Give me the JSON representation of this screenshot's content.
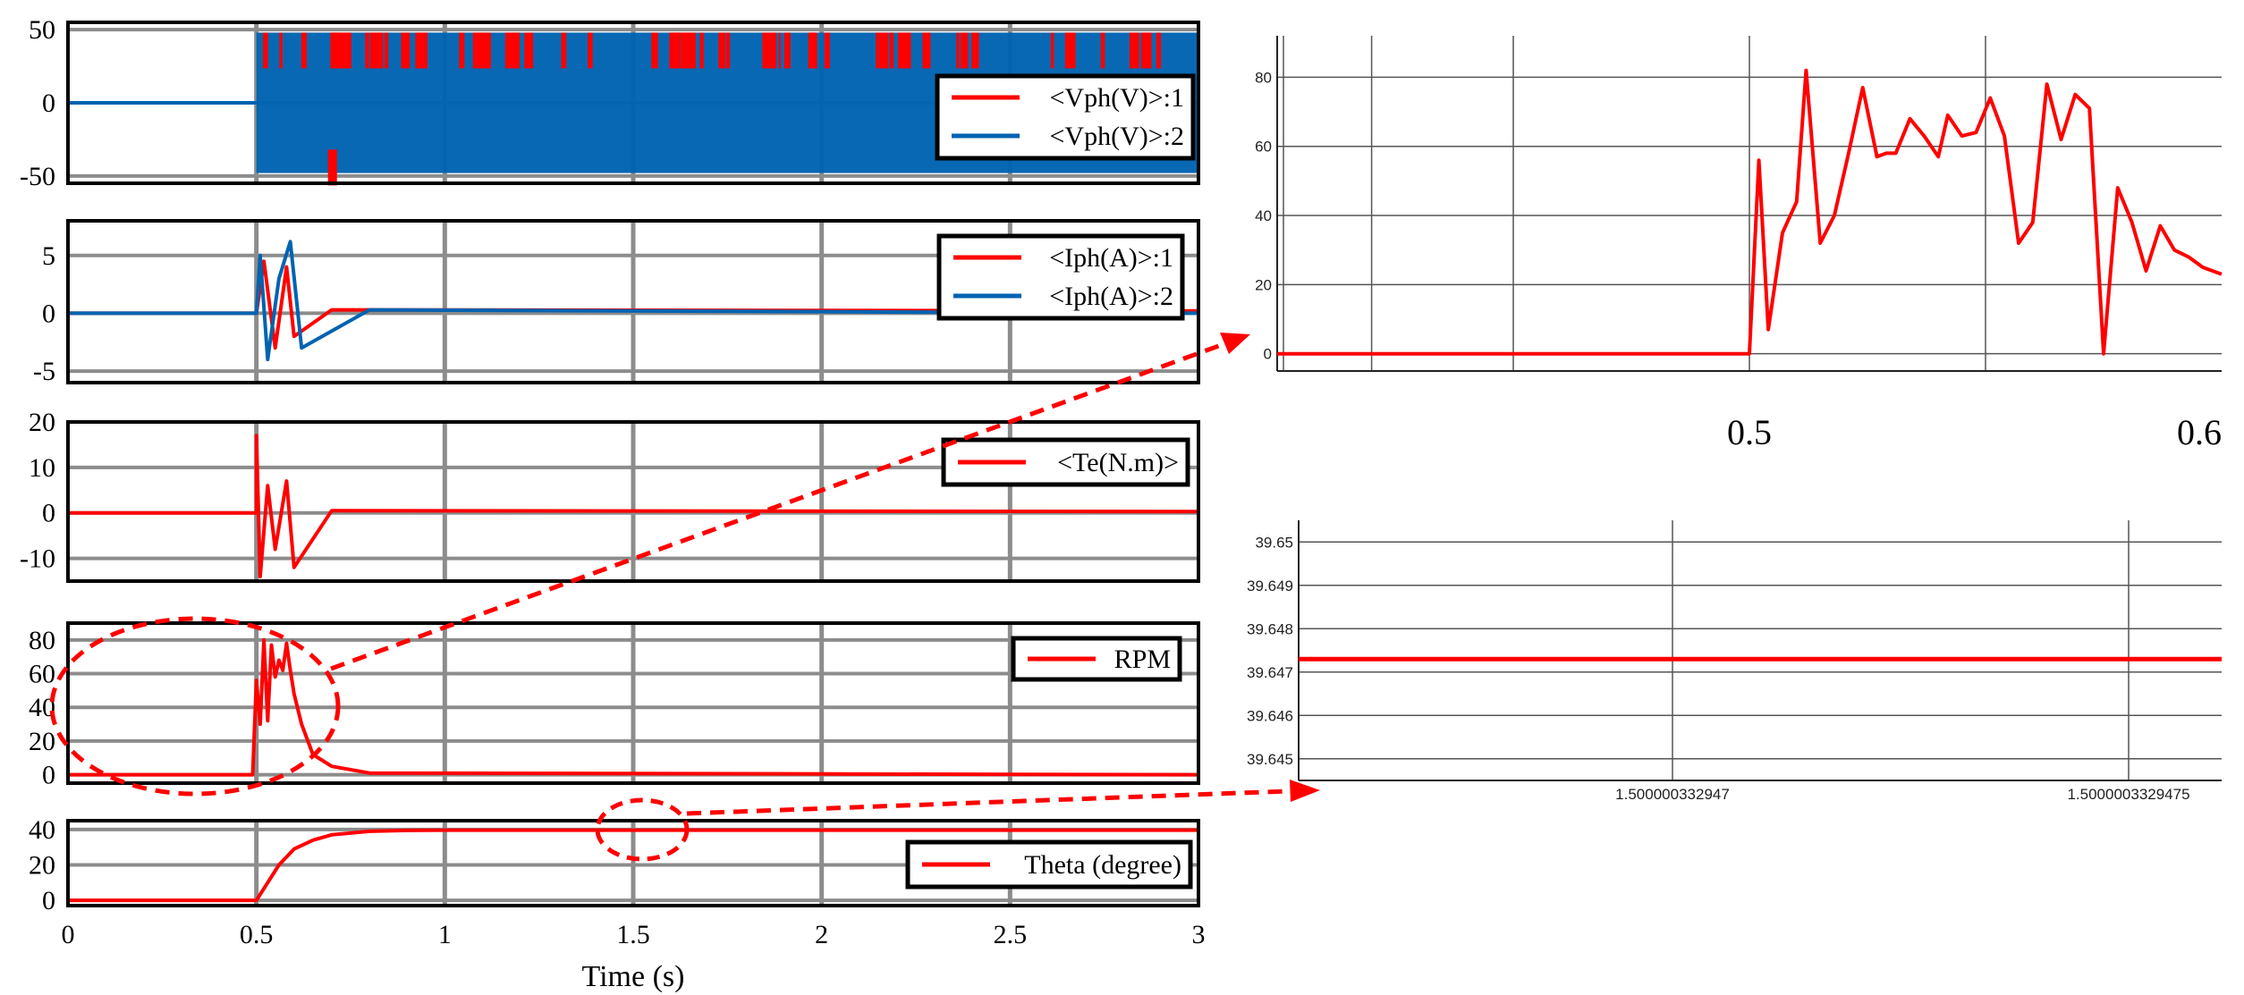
{
  "colors": {
    "red": "#ff0000",
    "blue": "#0063b1",
    "grid": "#8c8c8c",
    "frame": "#000000"
  },
  "chart_data": [
    {
      "type": "line",
      "panel": "voltage",
      "ylim": [
        -55,
        55
      ],
      "yticks": [
        -50,
        0,
        50
      ],
      "xlim": [
        0,
        3
      ],
      "legend": [
        "<Vph(V)>:1",
        "<Vph(V)>:2"
      ],
      "legend_placement": "right",
      "series": [
        {
          "name": "<Vph(V)>:1",
          "color": "red",
          "x": [
            0,
            0.5,
            0.5,
            3
          ],
          "y": [
            0,
            0,
            48,
            48
          ],
          "note_pwm": "switching between -48 and 48 after t=0.5"
        },
        {
          "name": "<Vph(V)>:2",
          "color": "blue",
          "x": [
            0,
            0.5,
            0.5,
            3
          ],
          "y": [
            0,
            0,
            48,
            48
          ]
        }
      ]
    },
    {
      "type": "line",
      "panel": "current",
      "ylim": [
        -6,
        8
      ],
      "yticks": [
        -5,
        0,
        5
      ],
      "xlim": [
        0,
        3
      ],
      "legend": [
        "<Iph(A)>:1",
        "<Iph(A)>:2"
      ],
      "legend_placement": "top-right",
      "series": [
        {
          "name": "<Iph(A)>:1",
          "color": "red",
          "x": [
            0,
            0.5,
            0.52,
            0.55,
            0.58,
            0.6,
            0.7,
            3
          ],
          "y": [
            0,
            0,
            4.5,
            -3,
            4,
            -2,
            0.3,
            0.2
          ]
        },
        {
          "name": "<Iph(A)>:2",
          "color": "blue",
          "x": [
            0,
            0.5,
            0.51,
            0.53,
            0.56,
            0.59,
            0.62,
            0.8,
            3
          ],
          "y": [
            0,
            0,
            5,
            -4,
            3,
            6.2,
            -3,
            0.3,
            0
          ]
        }
      ]
    },
    {
      "type": "line",
      "panel": "torque",
      "ylim": [
        -15,
        20
      ],
      "yticks": [
        -10,
        0,
        10,
        20
      ],
      "xlim": [
        0,
        3
      ],
      "legend": [
        "<Te(N.m)>"
      ],
      "legend_placement": "top-right",
      "series": [
        {
          "name": "<Te(N.m)>",
          "color": "red",
          "x": [
            0,
            0.5,
            0.5,
            0.51,
            0.53,
            0.55,
            0.58,
            0.6,
            0.7,
            3
          ],
          "y": [
            0,
            0,
            17,
            -14,
            6,
            -8,
            7,
            -12,
            0.5,
            0.3
          ]
        }
      ]
    },
    {
      "type": "line",
      "panel": "rpm",
      "ylim": [
        -5,
        90
      ],
      "yticks": [
        0,
        20,
        40,
        60,
        80
      ],
      "xlim": [
        0,
        3
      ],
      "legend": [
        "RPM"
      ],
      "legend_placement": "top-right",
      "series": [
        {
          "name": "RPM",
          "color": "red",
          "x": [
            0,
            0.49,
            0.5,
            0.51,
            0.52,
            0.53,
            0.54,
            0.55,
            0.56,
            0.57,
            0.58,
            0.59,
            0.6,
            0.62,
            0.65,
            0.7,
            0.8,
            3
          ],
          "y": [
            0,
            0,
            56,
            30,
            80,
            32,
            77,
            58,
            68,
            62,
            78,
            62,
            48,
            30,
            12,
            5,
            1,
            0
          ]
        }
      ]
    },
    {
      "type": "line",
      "panel": "theta",
      "ylim": [
        -3,
        45
      ],
      "yticks": [
        0,
        20,
        40
      ],
      "xlim": [
        0,
        3
      ],
      "xticks": [
        0,
        0.5,
        1,
        1.5,
        2,
        2.5,
        3
      ],
      "xtick_labels": [
        "0",
        "0.5",
        "1",
        "1.5",
        "2",
        "2.5",
        "3"
      ],
      "xlabel": "Time (s)",
      "legend": [
        "Theta (degree)"
      ],
      "legend_placement": "bottom-right",
      "series": [
        {
          "name": "Theta (degree)",
          "color": "red",
          "x": [
            0,
            0.5,
            0.53,
            0.56,
            0.6,
            0.65,
            0.7,
            0.8,
            0.9,
            1.0,
            3
          ],
          "y": [
            0,
            0,
            10,
            20,
            29,
            34,
            37,
            39,
            39.5,
            39.647,
            39.647
          ]
        }
      ]
    },
    {
      "type": "line",
      "panel": "rpm-zoom",
      "xlim": [
        0.4,
        0.6
      ],
      "ylim": [
        -5,
        92
      ],
      "yticks": [
        0,
        20,
        40,
        60,
        80
      ],
      "xticks": [
        0.5,
        0.6
      ],
      "xtick_labels": [
        "0.5",
        "0.6"
      ],
      "grid": true,
      "series": [
        {
          "name": "RPM",
          "color": "red",
          "x": [
            0.4,
            0.5,
            0.502,
            0.504,
            0.507,
            0.51,
            0.512,
            0.515,
            0.518,
            0.521,
            0.524,
            0.527,
            0.529,
            0.531,
            0.534,
            0.537,
            0.54,
            0.542,
            0.545,
            0.548,
            0.551,
            0.554,
            0.557,
            0.56,
            0.563,
            0.566,
            0.569,
            0.572,
            0.575,
            0.578,
            0.581,
            0.584,
            0.587,
            0.59,
            0.593,
            0.596,
            0.6
          ],
          "y": [
            0,
            0,
            56,
            7,
            35,
            44,
            82,
            32,
            40,
            58,
            77,
            57,
            58,
            58,
            68,
            63,
            57,
            69,
            63,
            64,
            74,
            63,
            32,
            38,
            78,
            62,
            75,
            71,
            0,
            48,
            38,
            24,
            37,
            30,
            28,
            25,
            23
          ]
        }
      ]
    },
    {
      "type": "line",
      "panel": "theta-zoom",
      "ylim": [
        39.6445,
        39.6505
      ],
      "yticks": [
        39.645,
        39.646,
        39.647,
        39.648,
        39.649,
        39.65
      ],
      "ytick_labels": [
        "39.645",
        "39.646",
        "39.647",
        "39.648",
        "39.649",
        "39.65"
      ],
      "xticks": [
        "1.500000332947",
        "1.5000003329475"
      ],
      "grid": true,
      "series": [
        {
          "name": "Theta (degree)",
          "color": "red",
          "x": [
            0,
            1
          ],
          "y": [
            39.6473,
            39.6473
          ]
        }
      ]
    }
  ]
}
